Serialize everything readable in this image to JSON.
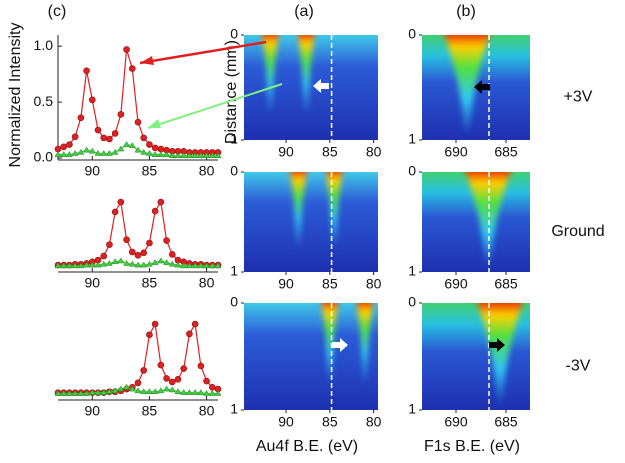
{
  "chart_data": [
    {
      "type": "line",
      "title": "(c)",
      "ylabel": "Normalized Intensity",
      "x": [
        93,
        92.5,
        92,
        91.5,
        91,
        90.5,
        90,
        89.5,
        89,
        88.5,
        88,
        87.5,
        87,
        86.5,
        86,
        85.5,
        85,
        84.5,
        84,
        83.5,
        83,
        82.5,
        82,
        81.5,
        81,
        80.5,
        80,
        79.5,
        79
      ],
      "series": [
        {
          "color": "#e02020",
          "values": [
            0.08,
            0.1,
            0.12,
            0.19,
            0.36,
            0.78,
            0.52,
            0.25,
            0.18,
            0.17,
            0.22,
            0.39,
            0.97,
            0.8,
            0.32,
            0.18,
            0.12,
            0.09,
            0.08,
            0.07,
            0.06,
            0.06,
            0.06,
            0.05,
            0.05,
            0.05,
            0.05,
            0.05,
            0.05
          ]
        },
        {
          "color": "#40d040",
          "values": [
            0.03,
            0.03,
            0.03,
            0.04,
            0.05,
            0.07,
            0.06,
            0.04,
            0.04,
            0.04,
            0.05,
            0.08,
            0.12,
            0.11,
            0.07,
            0.05,
            0.04,
            0.03,
            0.03,
            0.03,
            0.02,
            0.02,
            0.02,
            0.02,
            0.02,
            0.02,
            0.02,
            0.02,
            0.02
          ]
        }
      ],
      "xlim": [
        93,
        79
      ],
      "xticks": [
        90,
        85,
        80
      ],
      "ylim": [
        0,
        1.1
      ],
      "yticks": [
        {
          "value": 0,
          "label": "0.0"
        },
        {
          "value": 0.5,
          "label": "0.5"
        },
        {
          "value": 1,
          "label": "1.0"
        }
      ]
    },
    {
      "type": "heatmap",
      "title": "(a)",
      "ylabel": "Distance (mm)",
      "xlim": [
        94.8,
        79.5
      ],
      "xticks": [
        90,
        85,
        80
      ],
      "ylim": [
        0,
        1
      ],
      "yticks": [
        0,
        1
      ],
      "invert_y": true,
      "peaks": [
        91.8,
        87.7
      ],
      "reference_line": 84.8
    },
    {
      "type": "heatmap",
      "title": "(b)",
      "annotation": "+3V",
      "xlim": [
        693.4,
        682.6
      ],
      "xticks": [
        690,
        685
      ],
      "ylim": [
        0,
        1
      ],
      "yticks": [
        0,
        1
      ],
      "invert_y": true,
      "peaks": [
        688.9
      ],
      "reference_line": 686.7
    },
    {
      "type": "line",
      "x": [
        93,
        92.5,
        92,
        91.5,
        91,
        90.5,
        90,
        89.5,
        89,
        88.5,
        88,
        87.5,
        87,
        86.5,
        86,
        85.5,
        85,
        84.5,
        84,
        83.5,
        83,
        82.5,
        82,
        81.5,
        81,
        80.5,
        80,
        79.5,
        79
      ],
      "series": [
        {
          "color": "#e02020",
          "values": [
            0.06,
            0.06,
            0.06,
            0.07,
            0.07,
            0.08,
            0.1,
            0.12,
            0.17,
            0.31,
            0.71,
            0.83,
            0.37,
            0.22,
            0.18,
            0.21,
            0.33,
            0.72,
            0.83,
            0.36,
            0.19,
            0.12,
            0.1,
            0.08,
            0.07,
            0.07,
            0.06,
            0.06,
            0.06
          ]
        },
        {
          "color": "#40d040",
          "values": [
            0.05,
            0.05,
            0.05,
            0.05,
            0.05,
            0.06,
            0.06,
            0.06,
            0.07,
            0.08,
            0.1,
            0.11,
            0.08,
            0.07,
            0.06,
            0.06,
            0.07,
            0.09,
            0.11,
            0.09,
            0.07,
            0.06,
            0.05,
            0.05,
            0.05,
            0.05,
            0.05,
            0.05,
            0.05
          ]
        }
      ],
      "xlim": [
        93,
        79
      ],
      "xticks": [
        90,
        85,
        80
      ],
      "ylim": [
        0,
        1.1
      ]
    },
    {
      "type": "heatmap",
      "xlim": [
        94.8,
        79.5
      ],
      "xticks": [
        90,
        85,
        80
      ],
      "ylim": [
        0,
        1
      ],
      "yticks": [
        0,
        1
      ],
      "invert_y": true,
      "peaks": [
        88.6,
        84.5
      ],
      "reference_line": 84.8
    },
    {
      "type": "heatmap",
      "annotation": "Ground",
      "xlim": [
        693.4,
        682.6
      ],
      "xticks": [
        690,
        685
      ],
      "ylim": [
        0,
        1
      ],
      "yticks": [
        0,
        1
      ],
      "invert_y": true,
      "peaks": [
        686.8
      ],
      "reference_line": 686.7
    },
    {
      "type": "line",
      "x": [
        93,
        92.5,
        92,
        91.5,
        91,
        90.5,
        90,
        89.5,
        89,
        88.5,
        88,
        87.5,
        87,
        86.5,
        86,
        85.5,
        85,
        84.5,
        84,
        83.5,
        83,
        82.5,
        82,
        81.5,
        81,
        80.5,
        80,
        79.5,
        79
      ],
      "series": [
        {
          "color": "#e02020",
          "values": [
            0.06,
            0.06,
            0.06,
            0.06,
            0.06,
            0.06,
            0.06,
            0.06,
            0.06,
            0.07,
            0.07,
            0.08,
            0.1,
            0.12,
            0.17,
            0.31,
            0.71,
            0.83,
            0.37,
            0.22,
            0.18,
            0.21,
            0.33,
            0.72,
            0.83,
            0.36,
            0.19,
            0.12,
            0.1
          ]
        },
        {
          "color": "#40d040",
          "values": [
            0.05,
            0.05,
            0.05,
            0.05,
            0.05,
            0.05,
            0.06,
            0.06,
            0.06,
            0.07,
            0.08,
            0.1,
            0.12,
            0.1,
            0.08,
            0.07,
            0.07,
            0.07,
            0.08,
            0.1,
            0.09,
            0.07,
            0.06,
            0.06,
            0.06,
            0.06,
            0.05,
            0.05,
            0.05
          ]
        }
      ],
      "xlim": [
        93,
        79
      ],
      "xticks": [
        90,
        85,
        80
      ],
      "ylim": [
        0,
        1.1
      ]
    },
    {
      "type": "heatmap",
      "xlabel": "Au4f B.E. (eV)",
      "xlim": [
        94.8,
        79.5
      ],
      "xticks": [
        90,
        85,
        80
      ],
      "ylim": [
        0,
        1
      ],
      "yticks": [
        0,
        1
      ],
      "invert_y": true,
      "peaks": [
        85.0,
        81.0
      ],
      "reference_line": 84.8
    },
    {
      "type": "heatmap",
      "annotation": "-3V",
      "xlabel": "F1s B.E. (eV)",
      "xlim": [
        693.4,
        682.6
      ],
      "xticks": [
        690,
        685
      ],
      "ylim": [
        0,
        1
      ],
      "yticks": [
        0,
        1
      ],
      "invert_y": true,
      "peaks": [
        685.6
      ],
      "reference_line": 686.7
    }
  ]
}
